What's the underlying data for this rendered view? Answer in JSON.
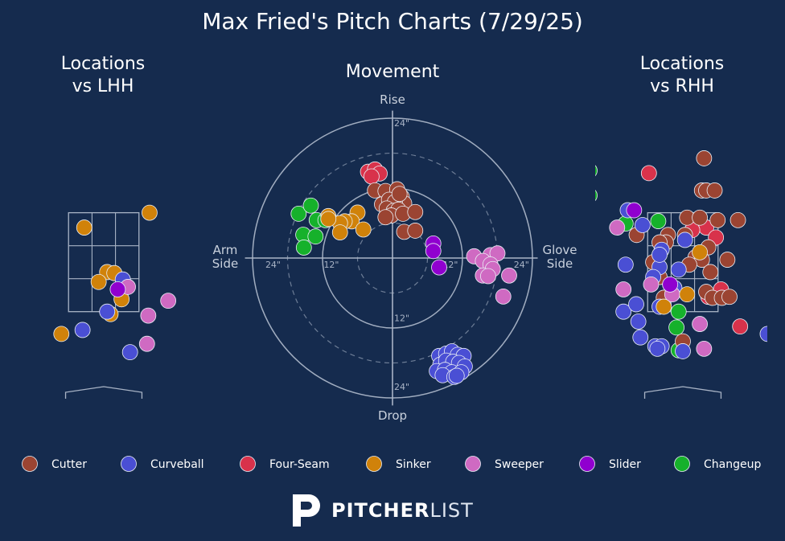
{
  "title": "Max Fried's Pitch Charts (7/29/25)",
  "brand": {
    "name_bold": "PITCHER",
    "name_light": "LIST"
  },
  "colors": {
    "background": "#152b4e",
    "grid": "#a9b4c6",
    "Cutter": "#9b4432",
    "Curveball": "#4a4fd4",
    "Four-Seam": "#d8324b",
    "Sinker": "#d0820a",
    "Sweeper": "#cf6ac2",
    "Slider": "#9000cf",
    "Changeup": "#16b12b"
  },
  "chart_data": [
    {
      "type": "scatter",
      "title": "Locations\nvs LHH",
      "note": "strike zone view; x = horizontal plate location (ft), y = height (ft)",
      "xlim": [
        -2.2,
        2.2
      ],
      "ylim": [
        0.0,
        5.2
      ],
      "strike_zone": {
        "x": [
          -0.83,
          0.83
        ],
        "y": [
          1.5,
          3.5
        ]
      },
      "points": [
        {
          "pitch": "Sinker",
          "x": 1.08,
          "y": 3.5
        },
        {
          "pitch": "Sinker",
          "x": -0.46,
          "y": 3.2
        },
        {
          "pitch": "Sinker",
          "x": 0.08,
          "y": 2.3
        },
        {
          "pitch": "Sinker",
          "x": 0.25,
          "y": 2.28
        },
        {
          "pitch": "Sinker",
          "x": -0.12,
          "y": 2.1
        },
        {
          "pitch": "Sinker",
          "x": 0.42,
          "y": 1.75
        },
        {
          "pitch": "Sinker",
          "x": 0.16,
          "y": 1.45
        },
        {
          "pitch": "Sinker",
          "x": -1.0,
          "y": 1.05
        },
        {
          "pitch": "Curveball",
          "x": 0.45,
          "y": 2.15
        },
        {
          "pitch": "Curveball",
          "x": 0.08,
          "y": 1.5
        },
        {
          "pitch": "Curveball",
          "x": -0.5,
          "y": 1.13
        },
        {
          "pitch": "Curveball",
          "x": 0.62,
          "y": 0.68
        },
        {
          "pitch": "Sweeper",
          "x": 0.57,
          "y": 2.0
        },
        {
          "pitch": "Sweeper",
          "x": 1.05,
          "y": 1.42
        },
        {
          "pitch": "Sweeper",
          "x": 1.52,
          "y": 1.72
        },
        {
          "pitch": "Sweeper",
          "x": 1.02,
          "y": 0.85
        },
        {
          "pitch": "Slider",
          "x": 0.33,
          "y": 1.95
        }
      ]
    },
    {
      "type": "scatter",
      "title": "Movement",
      "note": "polar movement chart; x = horizontal break (in), positive toward glove side; y = induced vertical break (in)",
      "labels": {
        "top": "Rise",
        "bottom": "Drop",
        "left": "Arm\nSide",
        "right": "Glove\nSide"
      },
      "rings": [
        {
          "r": 12,
          "style": "solid",
          "label": "12\""
        },
        {
          "r": 18,
          "style": "dashed",
          "label": ""
        },
        {
          "r": 24,
          "style": "solid",
          "label": "24\""
        },
        {
          "r": 6,
          "style": "dashed",
          "label": ""
        }
      ],
      "ring_labels": {
        "twelve": "12\"",
        "twentyfour": "24\""
      },
      "xlim": [
        -25,
        25
      ],
      "ylim": [
        -25,
        25
      ],
      "points": [
        {
          "pitch": "Four-Seam",
          "x": -4.2,
          "y": 14.8
        },
        {
          "pitch": "Four-Seam",
          "x": -3.0,
          "y": 15.2
        },
        {
          "pitch": "Four-Seam",
          "x": -2.2,
          "y": 14.5
        },
        {
          "pitch": "Four-Seam",
          "x": -3.6,
          "y": 14.0
        },
        {
          "pitch": "Cutter",
          "x": -3.0,
          "y": 11.6
        },
        {
          "pitch": "Cutter",
          "x": -1.2,
          "y": 11.5
        },
        {
          "pitch": "Cutter",
          "x": 0.8,
          "y": 11.8
        },
        {
          "pitch": "Cutter",
          "x": 1.6,
          "y": 10.5
        },
        {
          "pitch": "Cutter",
          "x": 2.0,
          "y": 9.4
        },
        {
          "pitch": "Cutter",
          "x": -1.8,
          "y": 9.2
        },
        {
          "pitch": "Cutter",
          "x": -0.6,
          "y": 10.0
        },
        {
          "pitch": "Cutter",
          "x": 0.4,
          "y": 9.6
        },
        {
          "pitch": "Cutter",
          "x": -1.0,
          "y": 8.5
        },
        {
          "pitch": "Cutter",
          "x": 0.2,
          "y": 8.1
        },
        {
          "pitch": "Cutter",
          "x": 1.0,
          "y": 8.3
        },
        {
          "pitch": "Cutter",
          "x": -0.2,
          "y": 7.3
        },
        {
          "pitch": "Cutter",
          "x": 1.8,
          "y": 7.6
        },
        {
          "pitch": "Cutter",
          "x": 3.9,
          "y": 7.9
        },
        {
          "pitch": "Cutter",
          "x": 2.0,
          "y": 4.5
        },
        {
          "pitch": "Cutter",
          "x": 3.9,
          "y": 4.7
        },
        {
          "pitch": "Cutter",
          "x": -1.2,
          "y": 7.0
        },
        {
          "pitch": "Cutter",
          "x": 1.2,
          "y": 11.0
        },
        {
          "pitch": "Changeup",
          "x": -16.1,
          "y": 7.6
        },
        {
          "pitch": "Changeup",
          "x": -14.0,
          "y": 9.0
        },
        {
          "pitch": "Changeup",
          "x": -13.0,
          "y": 6.5
        },
        {
          "pitch": "Changeup",
          "x": -11.5,
          "y": 6.5
        },
        {
          "pitch": "Changeup",
          "x": -15.3,
          "y": 4.0
        },
        {
          "pitch": "Changeup",
          "x": -13.2,
          "y": 3.7
        },
        {
          "pitch": "Changeup",
          "x": -15.2,
          "y": 1.8
        },
        {
          "pitch": "Sinker",
          "x": -11.0,
          "y": 7.2
        },
        {
          "pitch": "Sinker",
          "x": -6.0,
          "y": 7.8
        },
        {
          "pitch": "Sinker",
          "x": -7.0,
          "y": 6.3
        },
        {
          "pitch": "Sinker",
          "x": -8.2,
          "y": 6.3
        },
        {
          "pitch": "Sinker",
          "x": -9.0,
          "y": 6.0
        },
        {
          "pitch": "Sinker",
          "x": -11.0,
          "y": 6.7
        },
        {
          "pitch": "Sinker",
          "x": -9.0,
          "y": 4.4
        },
        {
          "pitch": "Sinker",
          "x": -5.0,
          "y": 4.9
        },
        {
          "pitch": "Slider",
          "x": 7.0,
          "y": 2.5
        },
        {
          "pitch": "Slider",
          "x": 7.0,
          "y": 1.2
        },
        {
          "pitch": "Slider",
          "x": 8.0,
          "y": -1.6
        },
        {
          "pitch": "Sweeper",
          "x": 14.0,
          "y": 0.3
        },
        {
          "pitch": "Sweeper",
          "x": 16.8,
          "y": 0.5
        },
        {
          "pitch": "Sweeper",
          "x": 18.0,
          "y": 0.8
        },
        {
          "pitch": "Sweeper",
          "x": 15.5,
          "y": -0.5
        },
        {
          "pitch": "Sweeper",
          "x": 16.8,
          "y": -1.1
        },
        {
          "pitch": "Sweeper",
          "x": 17.2,
          "y": -1.9
        },
        {
          "pitch": "Sweeper",
          "x": 15.5,
          "y": -3.0
        },
        {
          "pitch": "Sweeper",
          "x": 16.4,
          "y": -3.1
        },
        {
          "pitch": "Sweeper",
          "x": 20.0,
          "y": -3.0
        },
        {
          "pitch": "Sweeper",
          "x": 19.0,
          "y": -6.6
        },
        {
          "pitch": "Curveball",
          "x": 8.0,
          "y": -16.8
        },
        {
          "pitch": "Curveball",
          "x": 9.2,
          "y": -16.4
        },
        {
          "pitch": "Curveball",
          "x": 10.2,
          "y": -16.0
        },
        {
          "pitch": "Curveball",
          "x": 11.2,
          "y": -16.6
        },
        {
          "pitch": "Curveball",
          "x": 12.2,
          "y": -16.8
        },
        {
          "pitch": "Curveball",
          "x": 8.2,
          "y": -18.3
        },
        {
          "pitch": "Curveball",
          "x": 9.2,
          "y": -17.6
        },
        {
          "pitch": "Curveball",
          "x": 10.4,
          "y": -17.8
        },
        {
          "pitch": "Curveball",
          "x": 11.4,
          "y": -18.0
        },
        {
          "pitch": "Curveball",
          "x": 12.4,
          "y": -18.6
        },
        {
          "pitch": "Curveball",
          "x": 7.6,
          "y": -19.4
        },
        {
          "pitch": "Curveball",
          "x": 9.0,
          "y": -19.2
        },
        {
          "pitch": "Curveball",
          "x": 10.2,
          "y": -19.6
        },
        {
          "pitch": "Curveball",
          "x": 11.8,
          "y": -19.6
        },
        {
          "pitch": "Curveball",
          "x": 8.6,
          "y": -20.1
        },
        {
          "pitch": "Curveball",
          "x": 10.6,
          "y": -20.4
        },
        {
          "pitch": "Curveball",
          "x": 11.0,
          "y": -20.2
        }
      ]
    },
    {
      "type": "scatter",
      "title": "Locations\nvs RHH",
      "note": "strike zone view; x = horizontal plate location (ft), y = height (ft)",
      "xlim": [
        -2.2,
        2.2
      ],
      "ylim": [
        0.0,
        5.2
      ],
      "strike_zone": {
        "x": [
          -0.83,
          0.83
        ],
        "y": [
          1.5,
          3.5
        ]
      },
      "points": [
        {
          "pitch": "Changeup",
          "x": -2.2,
          "y": 4.35
        },
        {
          "pitch": "Changeup",
          "x": -2.2,
          "y": 3.85
        },
        {
          "pitch": "Changeup",
          "x": -1.35,
          "y": 3.28
        },
        {
          "pitch": "Changeup",
          "x": -0.58,
          "y": 3.33
        },
        {
          "pitch": "Changeup",
          "x": -0.1,
          "y": 1.5
        },
        {
          "pitch": "Changeup",
          "x": -0.15,
          "y": 1.18
        },
        {
          "pitch": "Changeup",
          "x": -0.1,
          "y": 0.72
        },
        {
          "pitch": "Four-Seam",
          "x": -0.8,
          "y": 4.3
        },
        {
          "pitch": "Four-Seam",
          "x": 0.55,
          "y": 3.2
        },
        {
          "pitch": "Four-Seam",
          "x": 0.78,
          "y": 3.0
        },
        {
          "pitch": "Four-Seam",
          "x": 0.9,
          "y": 1.95
        },
        {
          "pitch": "Four-Seam",
          "x": 0.6,
          "y": 1.8
        },
        {
          "pitch": "Four-Seam",
          "x": 1.35,
          "y": 1.2
        },
        {
          "pitch": "Four-Seam",
          "x": 0.22,
          "y": 3.15
        },
        {
          "pitch": "Cutter",
          "x": 0.5,
          "y": 4.6
        },
        {
          "pitch": "Cutter",
          "x": 0.45,
          "y": 3.95
        },
        {
          "pitch": "Cutter",
          "x": 0.55,
          "y": 3.95
        },
        {
          "pitch": "Cutter",
          "x": 0.75,
          "y": 3.95
        },
        {
          "pitch": "Cutter",
          "x": 0.1,
          "y": 3.4
        },
        {
          "pitch": "Cutter",
          "x": 0.4,
          "y": 3.4
        },
        {
          "pitch": "Cutter",
          "x": 0.82,
          "y": 3.35
        },
        {
          "pitch": "Cutter",
          "x": 1.3,
          "y": 3.35
        },
        {
          "pitch": "Cutter",
          "x": -0.35,
          "y": 3.05
        },
        {
          "pitch": "Cutter",
          "x": -1.09,
          "y": 3.05
        },
        {
          "pitch": "Cutter",
          "x": -0.4,
          "y": 2.9
        },
        {
          "pitch": "Cutter",
          "x": -0.55,
          "y": 2.9
        },
        {
          "pitch": "Cutter",
          "x": 0.05,
          "y": 3.05
        },
        {
          "pitch": "Cutter",
          "x": 0.6,
          "y": 2.8
        },
        {
          "pitch": "Cutter",
          "x": 0.3,
          "y": 2.6
        },
        {
          "pitch": "Cutter",
          "x": 0.45,
          "y": 2.55
        },
        {
          "pitch": "Cutter",
          "x": 1.05,
          "y": 2.55
        },
        {
          "pitch": "Cutter",
          "x": 0.15,
          "y": 2.45
        },
        {
          "pitch": "Cutter",
          "x": 0.65,
          "y": 2.3
        },
        {
          "pitch": "Cutter",
          "x": -0.7,
          "y": 2.5
        },
        {
          "pitch": "Cutter",
          "x": -0.55,
          "y": 2.2
        },
        {
          "pitch": "Cutter",
          "x": -0.3,
          "y": 2.05
        },
        {
          "pitch": "Cutter",
          "x": -0.45,
          "y": 1.78
        },
        {
          "pitch": "Cutter",
          "x": 0.55,
          "y": 1.9
        },
        {
          "pitch": "Cutter",
          "x": 0.7,
          "y": 1.78
        },
        {
          "pitch": "Cutter",
          "x": 0.92,
          "y": 1.78
        },
        {
          "pitch": "Cutter",
          "x": 0.0,
          "y": 0.9
        },
        {
          "pitch": "Cutter",
          "x": 1.1,
          "y": 1.8
        },
        {
          "pitch": "Curveball",
          "x": -1.3,
          "y": 3.55
        },
        {
          "pitch": "Curveball",
          "x": -0.95,
          "y": 3.25
        },
        {
          "pitch": "Curveball",
          "x": -1.35,
          "y": 2.45
        },
        {
          "pitch": "Curveball",
          "x": -0.5,
          "y": 2.75
        },
        {
          "pitch": "Curveball",
          "x": -0.55,
          "y": 2.4
        },
        {
          "pitch": "Curveball",
          "x": -0.7,
          "y": 2.2
        },
        {
          "pitch": "Curveball",
          "x": -0.2,
          "y": 1.98
        },
        {
          "pitch": "Curveball",
          "x": -0.55,
          "y": 1.6
        },
        {
          "pitch": "Curveball",
          "x": -1.4,
          "y": 1.5
        },
        {
          "pitch": "Curveball",
          "x": -1.1,
          "y": 1.65
        },
        {
          "pitch": "Curveball",
          "x": -1.05,
          "y": 1.3
        },
        {
          "pitch": "Curveball",
          "x": -1.0,
          "y": 0.98
        },
        {
          "pitch": "Curveball",
          "x": -0.65,
          "y": 0.8
        },
        {
          "pitch": "Curveball",
          "x": -0.5,
          "y": 0.8
        },
        {
          "pitch": "Curveball",
          "x": -0.6,
          "y": 0.75
        },
        {
          "pitch": "Curveball",
          "x": 0.0,
          "y": 0.7
        },
        {
          "pitch": "Curveball",
          "x": 0.05,
          "y": 2.95
        },
        {
          "pitch": "Curveball",
          "x": 2.0,
          "y": 1.05
        },
        {
          "pitch": "Curveball",
          "x": -0.1,
          "y": 2.35
        },
        {
          "pitch": "Curveball",
          "x": -0.55,
          "y": 2.65
        },
        {
          "pitch": "Sweeper",
          "x": -1.55,
          "y": 3.2
        },
        {
          "pitch": "Sweeper",
          "x": -1.4,
          "y": 1.95
        },
        {
          "pitch": "Sweeper",
          "x": -0.75,
          "y": 2.05
        },
        {
          "pitch": "Sweeper",
          "x": -0.25,
          "y": 1.85
        },
        {
          "pitch": "Sweeper",
          "x": 0.4,
          "y": 1.25
        },
        {
          "pitch": "Sweeper",
          "x": 0.5,
          "y": 0.75
        },
        {
          "pitch": "Sinker",
          "x": -0.45,
          "y": 1.6
        },
        {
          "pitch": "Sinker",
          "x": 0.1,
          "y": 1.85
        },
        {
          "pitch": "Sinker",
          "x": 0.4,
          "y": 2.7
        },
        {
          "pitch": "Slider",
          "x": -1.15,
          "y": 3.55
        },
        {
          "pitch": "Slider",
          "x": -0.3,
          "y": 2.05
        }
      ]
    }
  ],
  "legend": [
    {
      "label": "Cutter",
      "pitch": "Cutter"
    },
    {
      "label": "Curveball",
      "pitch": "Curveball"
    },
    {
      "label": "Four-Seam",
      "pitch": "Four-Seam"
    },
    {
      "label": "Sinker",
      "pitch": "Sinker"
    },
    {
      "label": "Sweeper",
      "pitch": "Sweeper"
    },
    {
      "label": "Slider",
      "pitch": "Slider"
    },
    {
      "label": "Changeup",
      "pitch": "Changeup"
    }
  ]
}
